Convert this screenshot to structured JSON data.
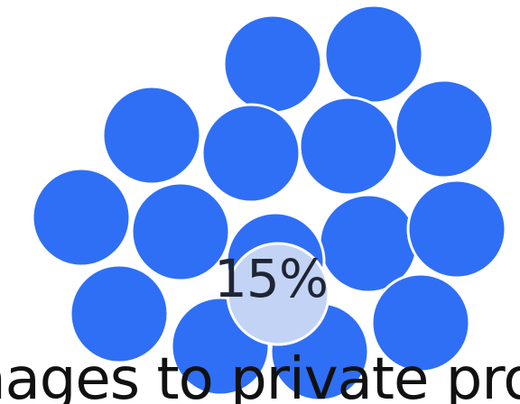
{
  "highlight": {
    "percent_label": "15%",
    "percent_value": 15
  },
  "caption": {
    "text": "nages to private pro"
  },
  "colors": {
    "dot": "#2f6ff5",
    "dot_highlight": "#c3d3f5",
    "text": "#1f2533"
  }
}
